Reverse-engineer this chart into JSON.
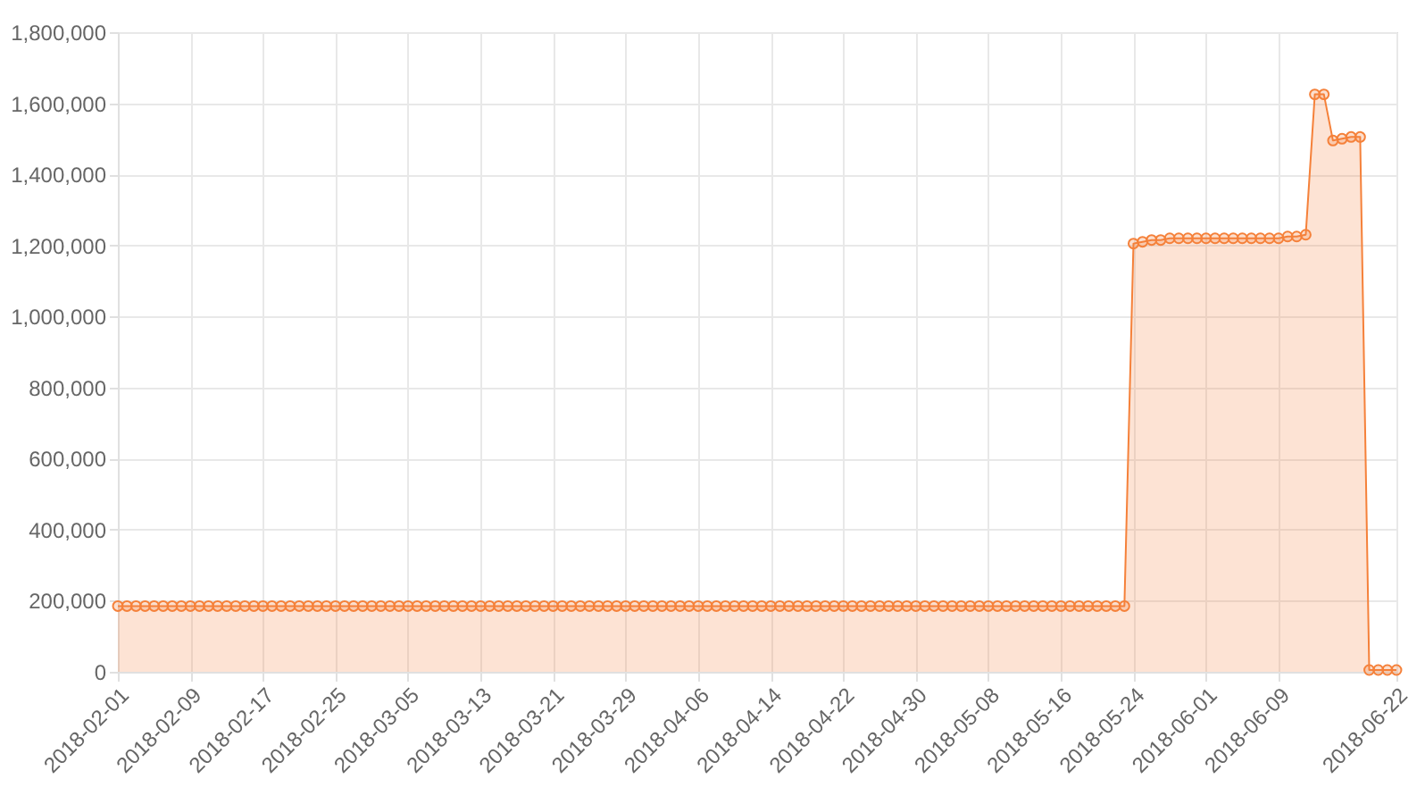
{
  "chart_data": {
    "type": "area",
    "x": [
      "2018-02-01",
      "2018-02-02",
      "2018-02-03",
      "2018-02-04",
      "2018-02-05",
      "2018-02-06",
      "2018-02-07",
      "2018-02-08",
      "2018-02-09",
      "2018-02-10",
      "2018-02-11",
      "2018-02-12",
      "2018-02-13",
      "2018-02-14",
      "2018-02-15",
      "2018-02-16",
      "2018-02-17",
      "2018-02-18",
      "2018-02-19",
      "2018-02-20",
      "2018-02-21",
      "2018-02-22",
      "2018-02-23",
      "2018-02-24",
      "2018-02-25",
      "2018-02-26",
      "2018-02-27",
      "2018-02-28",
      "2018-03-01",
      "2018-03-02",
      "2018-03-03",
      "2018-03-04",
      "2018-03-05",
      "2018-03-06",
      "2018-03-07",
      "2018-03-08",
      "2018-03-09",
      "2018-03-10",
      "2018-03-11",
      "2018-03-12",
      "2018-03-13",
      "2018-03-14",
      "2018-03-15",
      "2018-03-16",
      "2018-03-17",
      "2018-03-18",
      "2018-03-19",
      "2018-03-20",
      "2018-03-21",
      "2018-03-22",
      "2018-03-23",
      "2018-03-24",
      "2018-03-25",
      "2018-03-26",
      "2018-03-27",
      "2018-03-28",
      "2018-03-29",
      "2018-03-30",
      "2018-03-31",
      "2018-04-01",
      "2018-04-02",
      "2018-04-03",
      "2018-04-04",
      "2018-04-05",
      "2018-04-06",
      "2018-04-07",
      "2018-04-08",
      "2018-04-09",
      "2018-04-10",
      "2018-04-11",
      "2018-04-12",
      "2018-04-13",
      "2018-04-14",
      "2018-04-15",
      "2018-04-16",
      "2018-04-17",
      "2018-04-18",
      "2018-04-19",
      "2018-04-20",
      "2018-04-21",
      "2018-04-22",
      "2018-04-23",
      "2018-04-24",
      "2018-04-25",
      "2018-04-26",
      "2018-04-27",
      "2018-04-28",
      "2018-04-29",
      "2018-04-30",
      "2018-05-01",
      "2018-05-02",
      "2018-05-03",
      "2018-05-04",
      "2018-05-05",
      "2018-05-06",
      "2018-05-07",
      "2018-05-08",
      "2018-05-09",
      "2018-05-10",
      "2018-05-11",
      "2018-05-12",
      "2018-05-13",
      "2018-05-14",
      "2018-05-15",
      "2018-05-16",
      "2018-05-17",
      "2018-05-18",
      "2018-05-19",
      "2018-05-20",
      "2018-05-21",
      "2018-05-22",
      "2018-05-23",
      "2018-05-24",
      "2018-05-25",
      "2018-05-26",
      "2018-05-27",
      "2018-05-28",
      "2018-05-29",
      "2018-05-30",
      "2018-05-31",
      "2018-06-01",
      "2018-06-02",
      "2018-06-03",
      "2018-06-04",
      "2018-06-05",
      "2018-06-06",
      "2018-06-07",
      "2018-06-08",
      "2018-06-09",
      "2018-06-10",
      "2018-06-11",
      "2018-06-12",
      "2018-06-13",
      "2018-06-14",
      "2018-06-15",
      "2018-06-16",
      "2018-06-17",
      "2018-06-18",
      "2018-06-19",
      "2018-06-20",
      "2018-06-21",
      "2018-06-22"
    ],
    "series": [
      {
        "color": "#f5813a",
        "values": [
          185000,
          185000,
          185000,
          185000,
          185000,
          185000,
          185000,
          185000,
          185000,
          185000,
          185000,
          185000,
          185000,
          185000,
          185000,
          185000,
          185000,
          185000,
          185000,
          185000,
          185000,
          185000,
          185000,
          185000,
          185000,
          185000,
          185000,
          185000,
          185000,
          185000,
          185000,
          185000,
          185000,
          185000,
          185000,
          185000,
          185000,
          185000,
          185000,
          185000,
          185000,
          185000,
          185000,
          185000,
          185000,
          185000,
          185000,
          185000,
          185000,
          185000,
          185000,
          185000,
          185000,
          185000,
          185000,
          185000,
          185000,
          185000,
          185000,
          185000,
          185000,
          185000,
          185000,
          185000,
          185000,
          185000,
          185000,
          185000,
          185000,
          185000,
          185000,
          185000,
          185000,
          185000,
          185000,
          185000,
          185000,
          185000,
          185000,
          185000,
          185000,
          185000,
          185000,
          185000,
          185000,
          185000,
          185000,
          185000,
          185000,
          185000,
          185000,
          185000,
          185000,
          185000,
          185000,
          185000,
          185000,
          185000,
          185000,
          185000,
          185000,
          185000,
          185000,
          185000,
          185000,
          185000,
          185000,
          185000,
          185000,
          185000,
          185000,
          185000,
          1205000,
          1210000,
          1215000,
          1215000,
          1220000,
          1220000,
          1220000,
          1220000,
          1220000,
          1220000,
          1220000,
          1220000,
          1220000,
          1220000,
          1220000,
          1220000,
          1220000,
          1225000,
          1225000,
          1230000,
          1625000,
          1625000,
          1495000,
          1500000,
          1505000,
          1505000,
          5000,
          5000,
          5000,
          5000
        ]
      }
    ],
    "xlim": [
      "2018-02-01",
      "2018-06-22"
    ],
    "xticks": [
      "2018-02-01",
      "2018-02-09",
      "2018-02-17",
      "2018-02-25",
      "2018-03-05",
      "2018-03-13",
      "2018-03-21",
      "2018-03-29",
      "2018-04-06",
      "2018-04-14",
      "2018-04-22",
      "2018-04-30",
      "2018-05-08",
      "2018-05-16",
      "2018-05-24",
      "2018-06-01",
      "2018-06-09",
      "2018-06-22"
    ],
    "ylim": [
      0,
      1800000
    ],
    "yticks": [
      0,
      {
        "value": 200000,
        "label": "200,000"
      },
      {
        "value": 400000,
        "label": "400,000"
      },
      {
        "value": 600000,
        "label": "600,000"
      },
      {
        "value": 800000,
        "label": "800,000"
      },
      {
        "value": 1000000,
        "label": "1,000,000"
      },
      {
        "value": 1200000,
        "label": "1,200,000"
      },
      {
        "value": 1400000,
        "label": "1,400,000"
      },
      {
        "value": 1600000,
        "label": "1,600,000"
      },
      {
        "value": 1800000,
        "label": "1,800,000"
      }
    ],
    "grid": true,
    "marker": "circle",
    "line_style": "solid"
  }
}
